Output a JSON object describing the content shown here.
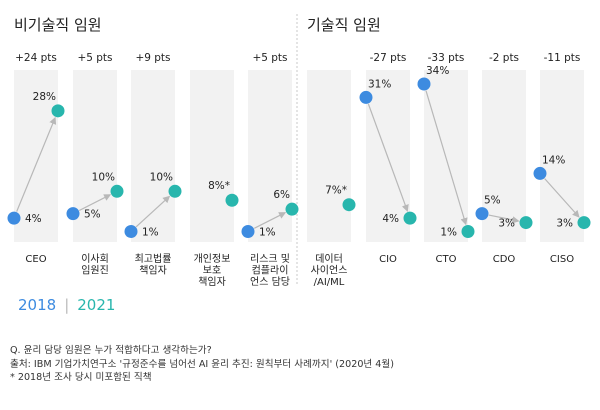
{
  "colors": {
    "year_2018": "#3d8be0",
    "year_2021": "#28b6ad",
    "band": "#f2f2f2",
    "arrow": "#b8b8b8",
    "divider": "#c8c8c8"
  },
  "chart_data": {
    "type": "slope",
    "groups": [
      {
        "title": "비기술직 임원",
        "metrics": [
          0,
          1,
          2,
          3,
          4
        ]
      },
      {
        "title": "기술직 임원",
        "metrics": [
          5,
          6,
          7,
          8,
          9
        ]
      }
    ],
    "series": [
      {
        "name": "2018"
      },
      {
        "name": "2021"
      }
    ],
    "y_range": [
      0,
      34
    ],
    "metrics": [
      {
        "label": [
          "CEO"
        ],
        "change": "+24 pts",
        "v2018": 4,
        "v2021": 28,
        "l2018": "4%",
        "l2021": "28%"
      },
      {
        "label": [
          "이사회",
          "임원진"
        ],
        "change": "+5 pts",
        "v2018": 5,
        "v2021": 10,
        "l2018": "5%",
        "l2021": "10%"
      },
      {
        "label": [
          "최고법률",
          "책임자"
        ],
        "change": "+9 pts",
        "v2018": 1,
        "v2021": 10,
        "l2018": "1%",
        "l2021": "10%"
      },
      {
        "label": [
          "개인정보",
          "보호",
          "책임자"
        ],
        "change": "",
        "v2018": null,
        "v2021": 8,
        "l2018": "",
        "l2021": "8%*"
      },
      {
        "label": [
          "리스크 및",
          "컴플라이",
          "언스 담당"
        ],
        "change": "+5 pts",
        "v2018": 1,
        "v2021": 6,
        "l2018": "1%",
        "l2021": "6%"
      },
      {
        "label": [
          "데이터",
          "사이언스",
          "/AI/ML"
        ],
        "change": "",
        "v2018": null,
        "v2021": 7,
        "l2018": "",
        "l2021": "7%*"
      },
      {
        "label": [
          "CIO"
        ],
        "change": "-27 pts",
        "v2018": 31,
        "v2021": 4,
        "l2018": "31%",
        "l2021": "4%"
      },
      {
        "label": [
          "CTO"
        ],
        "change": "-33 pts",
        "v2018": 34,
        "v2021": 1,
        "l2018": "34%",
        "l2021": "1%"
      },
      {
        "label": [
          "CDO"
        ],
        "change": "-2 pts",
        "v2018": 5,
        "v2021": 3,
        "l2018": "5%",
        "l2021": "3%"
      },
      {
        "label": [
          "CISO"
        ],
        "change": "-11 pts",
        "v2018": 14,
        "v2021": 3,
        "l2018": "14%",
        "l2021": "3%"
      }
    ]
  },
  "legend": {
    "y2018": "2018",
    "separator": "|",
    "y2021": "2021"
  },
  "notes": {
    "question": "Q. 윤리 담당 임원은 누가 적합하다고 생각하는가?",
    "source": "출처: IBM 기업가치연구소 '규정준수를 넘어선 AI 윤리 추진: 원칙부터 사례까지' (2020년 4월)",
    "footnote": "* 2018년 조사 당시 미포함된 직책"
  }
}
